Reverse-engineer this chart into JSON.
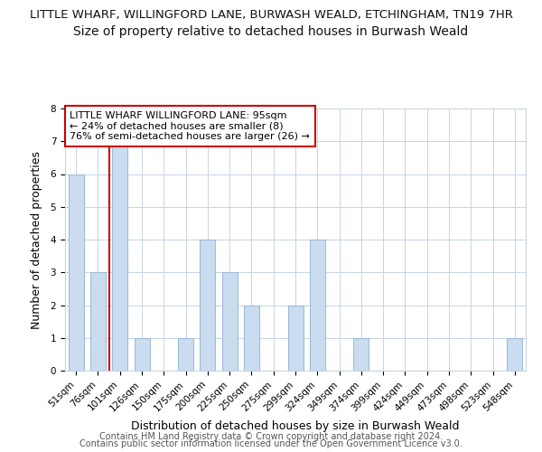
{
  "title_line1": "LITTLE WHARF, WILLINGFORD LANE, BURWASH WEALD, ETCHINGHAM, TN19 7HR",
  "title_line2": "Size of property relative to detached houses in Burwash Weald",
  "xlabel": "Distribution of detached houses by size in Burwash Weald",
  "ylabel": "Number of detached properties",
  "footer_line1": "Contains HM Land Registry data © Crown copyright and database right 2024.",
  "footer_line2": "Contains public sector information licensed under the Open Government Licence v3.0.",
  "bins": [
    "51sqm",
    "76sqm",
    "101sqm",
    "126sqm",
    "150sqm",
    "175sqm",
    "200sqm",
    "225sqm",
    "250sqm",
    "275sqm",
    "299sqm",
    "324sqm",
    "349sqm",
    "374sqm",
    "399sqm",
    "424sqm",
    "449sqm",
    "473sqm",
    "498sqm",
    "523sqm",
    "548sqm"
  ],
  "values": [
    6,
    3,
    7,
    1,
    0,
    1,
    4,
    3,
    2,
    0,
    2,
    4,
    0,
    1,
    0,
    0,
    0,
    0,
    0,
    0,
    1
  ],
  "bar_color": "#c9dcf0",
  "bar_edge_color": "#a0bcd8",
  "red_line_color": "#cc0000",
  "red_line_bin_index": 2,
  "annotation_line1": "LITTLE WHARF WILLINGFORD LANE: 95sqm",
  "annotation_line2": "← 24% of detached houses are smaller (8)",
  "annotation_line3": "76% of semi-detached houses are larger (26) →",
  "annotation_edge_color": "#cc0000",
  "ylim": [
    0,
    8
  ],
  "yticks": [
    0,
    1,
    2,
    3,
    4,
    5,
    6,
    7,
    8
  ],
  "bg_color": "#ffffff",
  "grid_color": "#c8d4e4",
  "title1_fontsize": 9.5,
  "title2_fontsize": 10,
  "axis_label_fontsize": 9,
  "tick_fontsize": 7.5,
  "annotation_fontsize": 8,
  "footer_fontsize": 7
}
